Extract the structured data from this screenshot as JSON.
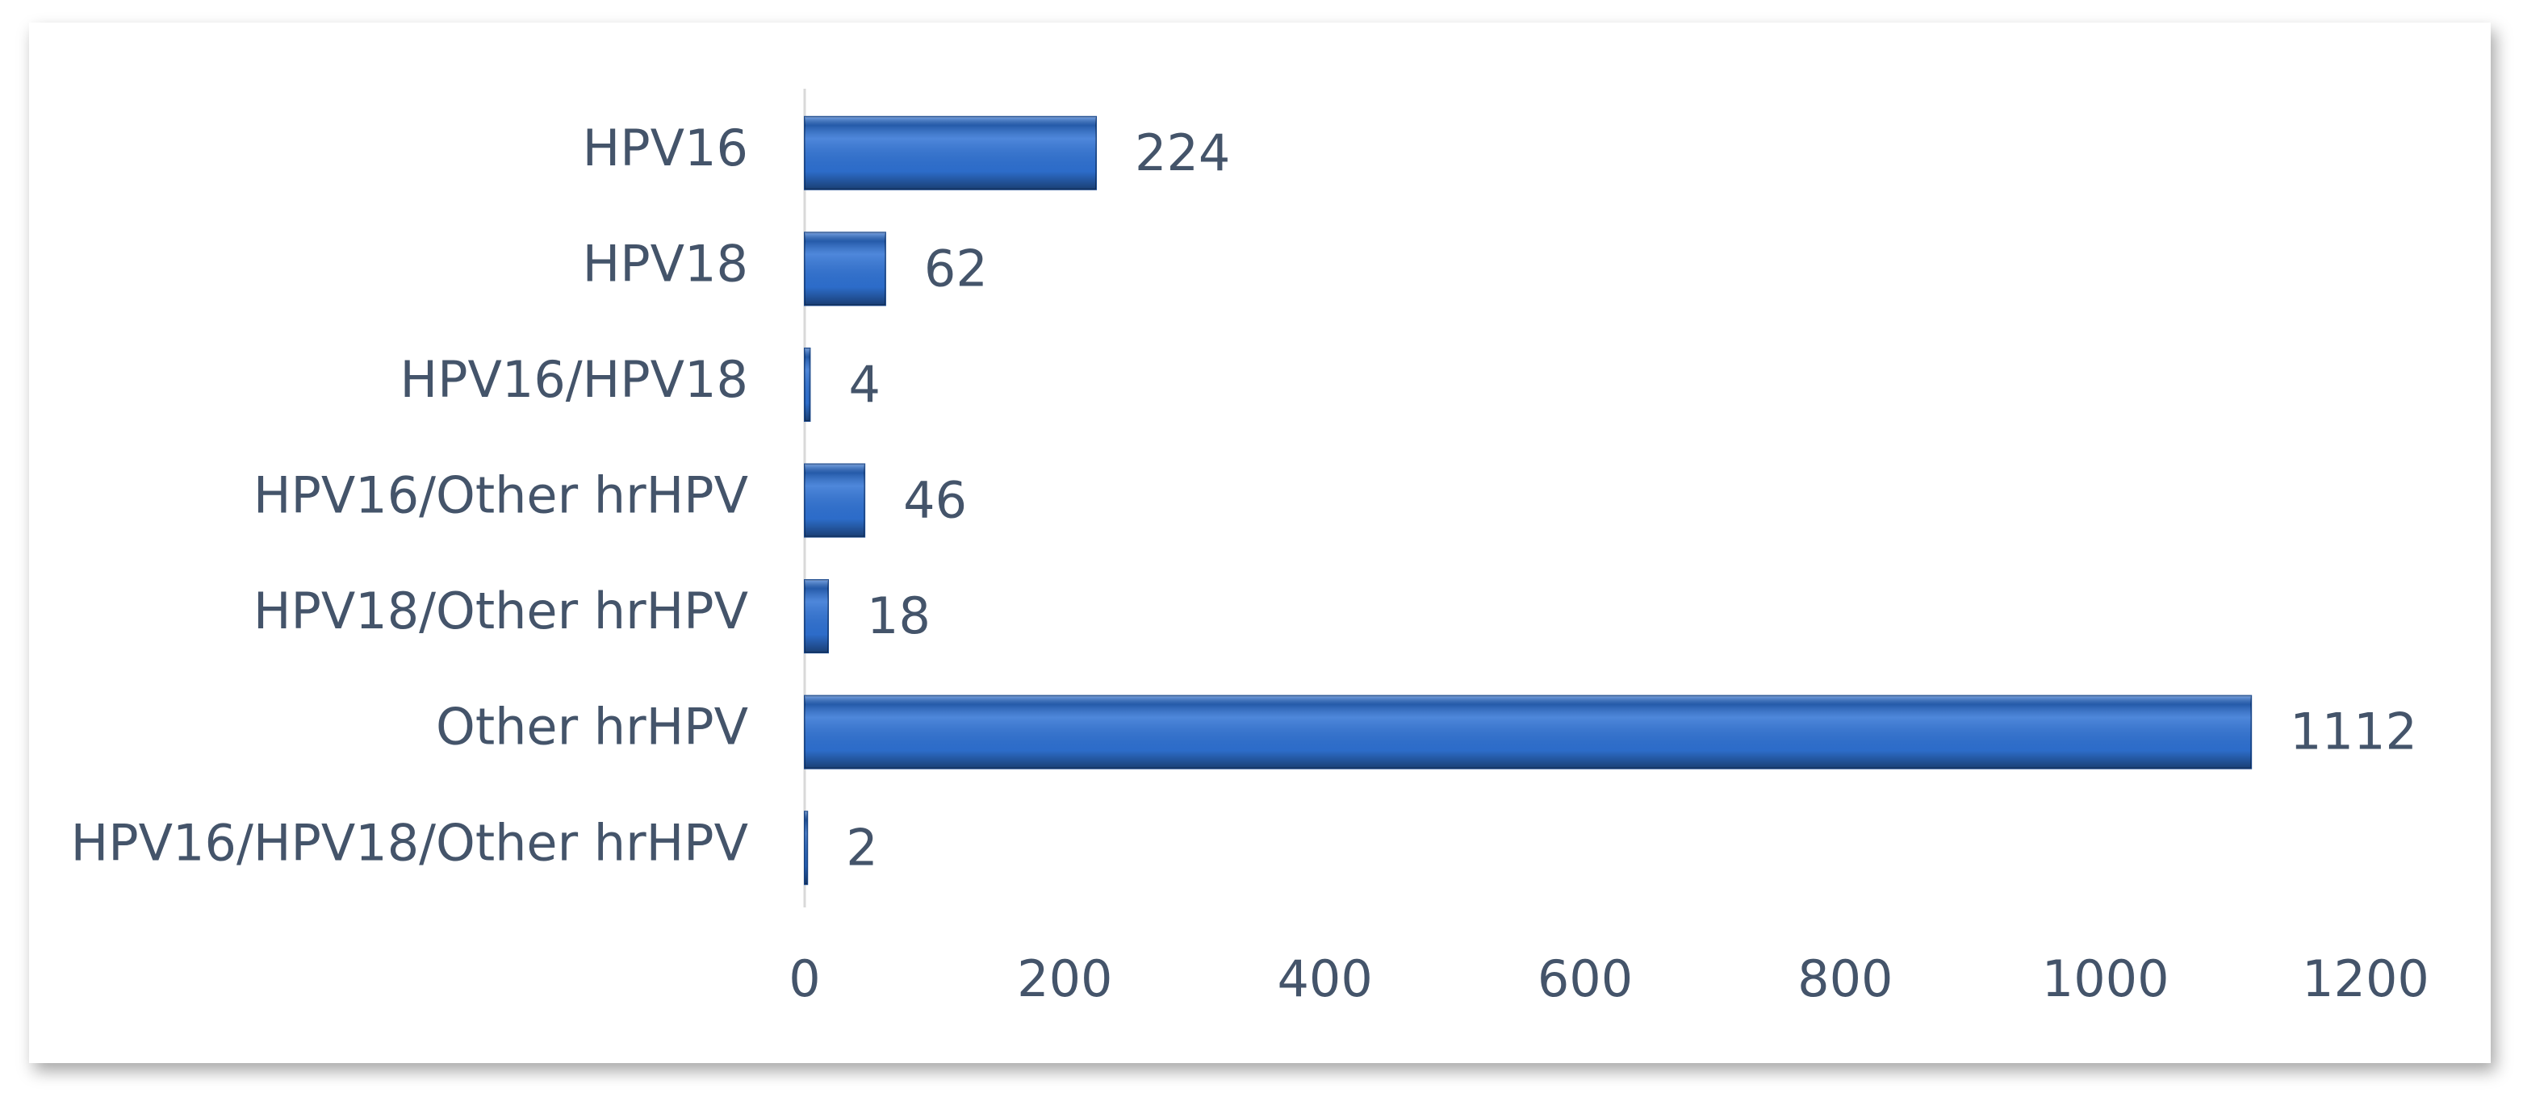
{
  "chart_data": {
    "type": "bar",
    "orientation": "horizontal",
    "categories": [
      "HPV16",
      "HPV18",
      "HPV16/HPV18",
      "HPV16/Other hrHPV",
      "HPV18/Other hrHPV",
      "Other hrHPV",
      "HPV16/HPV18/Other hrHPV"
    ],
    "values": [
      224,
      62,
      4,
      46,
      18,
      1112,
      2
    ],
    "color": "#2f72d4",
    "xlim": [
      0,
      1200
    ],
    "xticks": [
      0,
      200,
      400,
      600,
      800,
      1000,
      1200
    ],
    "grid": false
  }
}
